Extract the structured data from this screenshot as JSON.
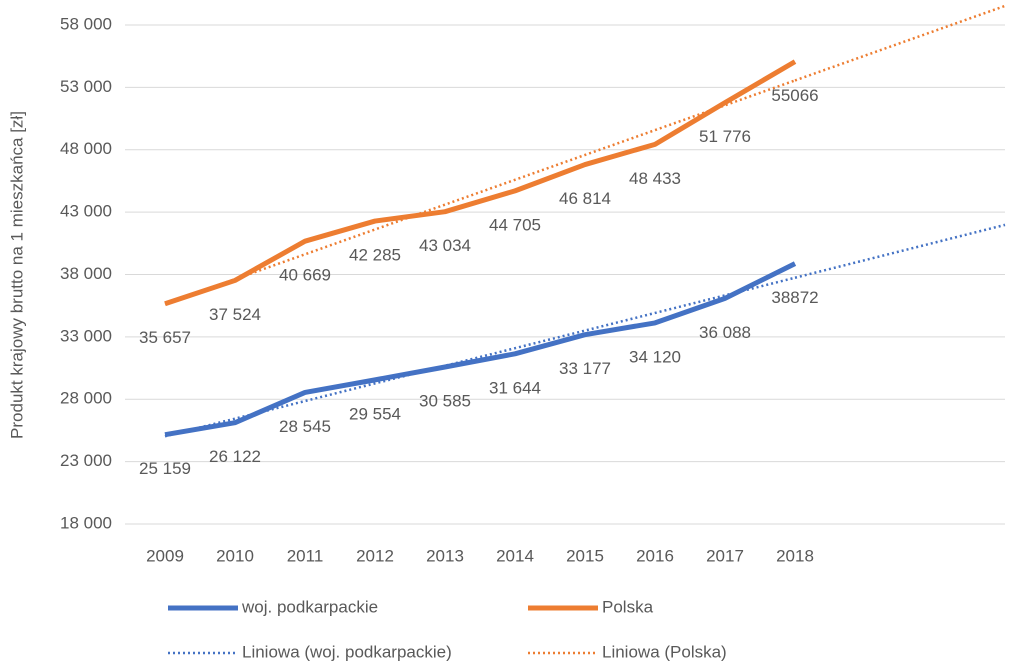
{
  "chart_data": {
    "type": "line",
    "y_axis_label": "Produkt krajowy brutto na 1 mieszkańca [zł]",
    "categories": [
      "2009",
      "2010",
      "2011",
      "2012",
      "2013",
      "2014",
      "2015",
      "2016",
      "2017",
      "2018"
    ],
    "ylim": [
      18000,
      58000
    ],
    "yticks": [
      {
        "value": 18000,
        "label": "18 000"
      },
      {
        "value": 23000,
        "label": "23 000"
      },
      {
        "value": 28000,
        "label": "28 000"
      },
      {
        "value": 33000,
        "label": "33 000"
      },
      {
        "value": 38000,
        "label": "38 000"
      },
      {
        "value": 43000,
        "label": "43 000"
      },
      {
        "value": 48000,
        "label": "48 000"
      },
      {
        "value": 53000,
        "label": "53 000"
      },
      {
        "value": 58000,
        "label": "58 000"
      }
    ],
    "grid": true,
    "legend": "bottom",
    "series": [
      {
        "name": "woj. podkarpackie",
        "color": "#4472c4",
        "values": [
          25159,
          26122,
          28545,
          29554,
          30585,
          31644,
          33177,
          34120,
          36088,
          38872
        ],
        "value_labels": [
          "25 159",
          "26 122",
          "28 545",
          "29 554",
          "30 585",
          "31 644",
          "33 177",
          "34 120",
          "36 088",
          "38872"
        ]
      },
      {
        "name": "Polska",
        "color": "#ed7d31",
        "values": [
          35657,
          37524,
          40669,
          42285,
          43034,
          44705,
          46814,
          48433,
          51776,
          55066
        ],
        "value_labels": [
          "35 657",
          "37 524",
          "40 669",
          "42 285",
          "43 034",
          "44 705",
          "46 814",
          "48 433",
          "51 776",
          "55066"
        ]
      }
    ],
    "trendlines": [
      {
        "name": "Liniowa (woj. podkarpackie)",
        "series": 0,
        "color": "#4472c4"
      },
      {
        "name": "Liniowa (Polska)",
        "series": 1,
        "color": "#ed7d31"
      }
    ]
  }
}
